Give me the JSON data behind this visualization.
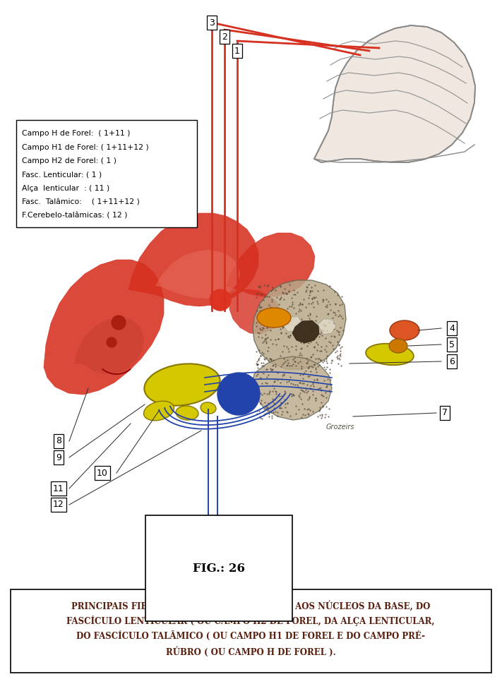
{
  "fig_label": "FIG.: 26",
  "caption_line1": "PRINCIPAIS FIBRAS QUE PARTICIPAM, JUNTO AOS NÚCLEOS DA BASE, DO",
  "caption_line2": "FASCÍCULO LENTICULAR ( OU CAMPO H2 DE FOREL, DA ALÇA LENTICULAR,",
  "caption_line3": "DO FASCÍCULO TALÂMICO ( OU CAMPO H1 DE FOREL E DO CAMPO PRÉ-",
  "caption_line4": "RÚBRO ( OU CAMPO H DE FOREL ).",
  "legend_lines": [
    "Campo H de Forel:  ( 1+11 )",
    "Campo H1 de Forel: ( 1+11+12 )",
    "Campo H2 de Forel: ( 1 )",
    "Fasc. Lenticular: ( 1 )",
    "Alça  lenticular  : ( 11 )",
    "Fasc.  Talâmico:    ( 1+11+12 )",
    "F.Cerebelo-talâmicas: ( 12 )"
  ],
  "red_color": "#d63020",
  "red_light": "#e06050",
  "blue_color": "#2244aa",
  "yellow_color": "#d4c800",
  "orange_color": "#cc7700",
  "orange2_color": "#dd5522",
  "dark_color": "#222222",
  "stipple_color": "#554433",
  "thal_color": "#b8a888",
  "caption_color": "#5a2010"
}
